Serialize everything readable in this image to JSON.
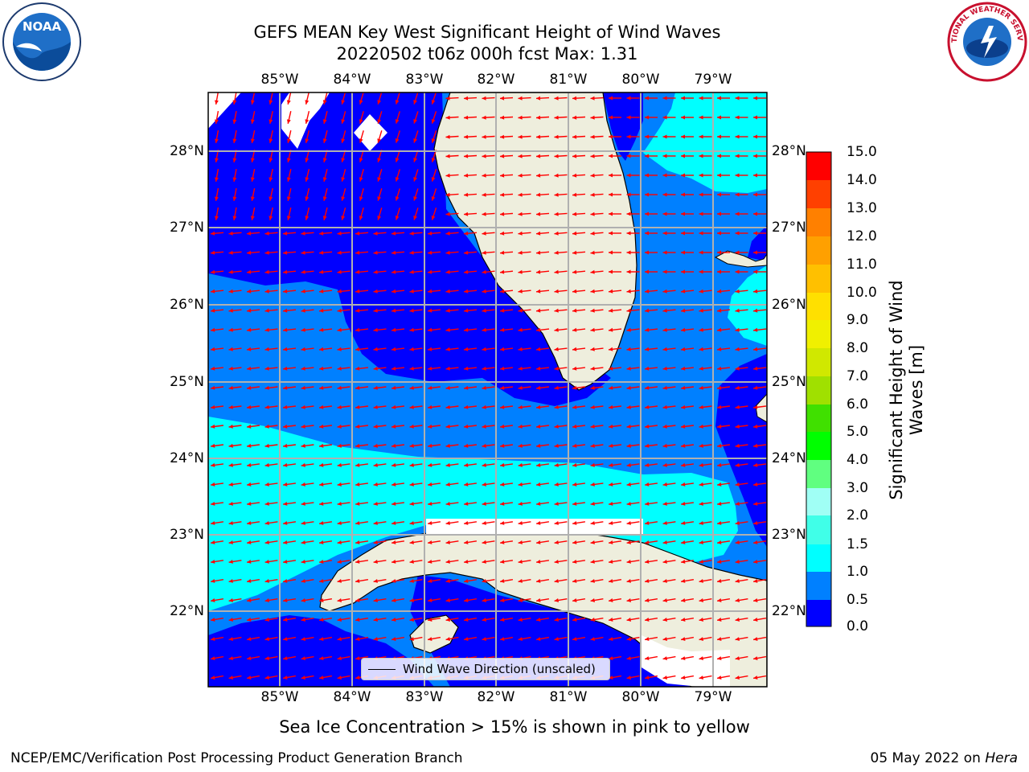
{
  "title_line1": "GEFS MEAN Key West Significant Height of Wind Waves",
  "title_line2": "20220502 t06z 000h fcst   Max: 1.31",
  "lon_ticks": [
    "85°W",
    "84°W",
    "83°W",
    "82°W",
    "81°W",
    "80°W",
    "79°W"
  ],
  "lat_ticks": [
    "22°N",
    "23°N",
    "24°N",
    "25°N",
    "26°N",
    "27°N",
    "28°N"
  ],
  "colorbar": {
    "title": "Significant Height of Wind Waves [m]",
    "labels": [
      "0.0",
      "0.5",
      "1.0",
      "1.5",
      "2.0",
      "3.0",
      "4.0",
      "5.0",
      "6.0",
      "7.0",
      "8.0",
      "9.0",
      "10.0",
      "11.0",
      "12.0",
      "13.0",
      "14.0",
      "15.0"
    ],
    "colors": [
      "#0000ff",
      "#0080ff",
      "#00ffff",
      "#40ffe8",
      "#a0fff5",
      "#60ff80",
      "#00ff00",
      "#40e000",
      "#a0e000",
      "#d0e800",
      "#f0f000",
      "#ffe000",
      "#ffc000",
      "#ffa000",
      "#ff8000",
      "#ff4000",
      "#ff0000"
    ]
  },
  "legend": {
    "label": "Wind Wave Direction (unscaled)"
  },
  "sea_ice_note": "Sea Ice Concentration > 15% is shown in pink to yellow",
  "footer_left": "NCEP/EMC/Verification Post Processing Product Generation Branch",
  "footer_right_date": "05 May 2022 on",
  "footer_right_host": "Hera",
  "logos": {
    "left": "NOAA",
    "right": "NATIONAL WEATHER SERVICE"
  },
  "colors": {
    "land": "#eeeedd",
    "arrow": "#ff0000",
    "grid": "#b0b0b0"
  }
}
